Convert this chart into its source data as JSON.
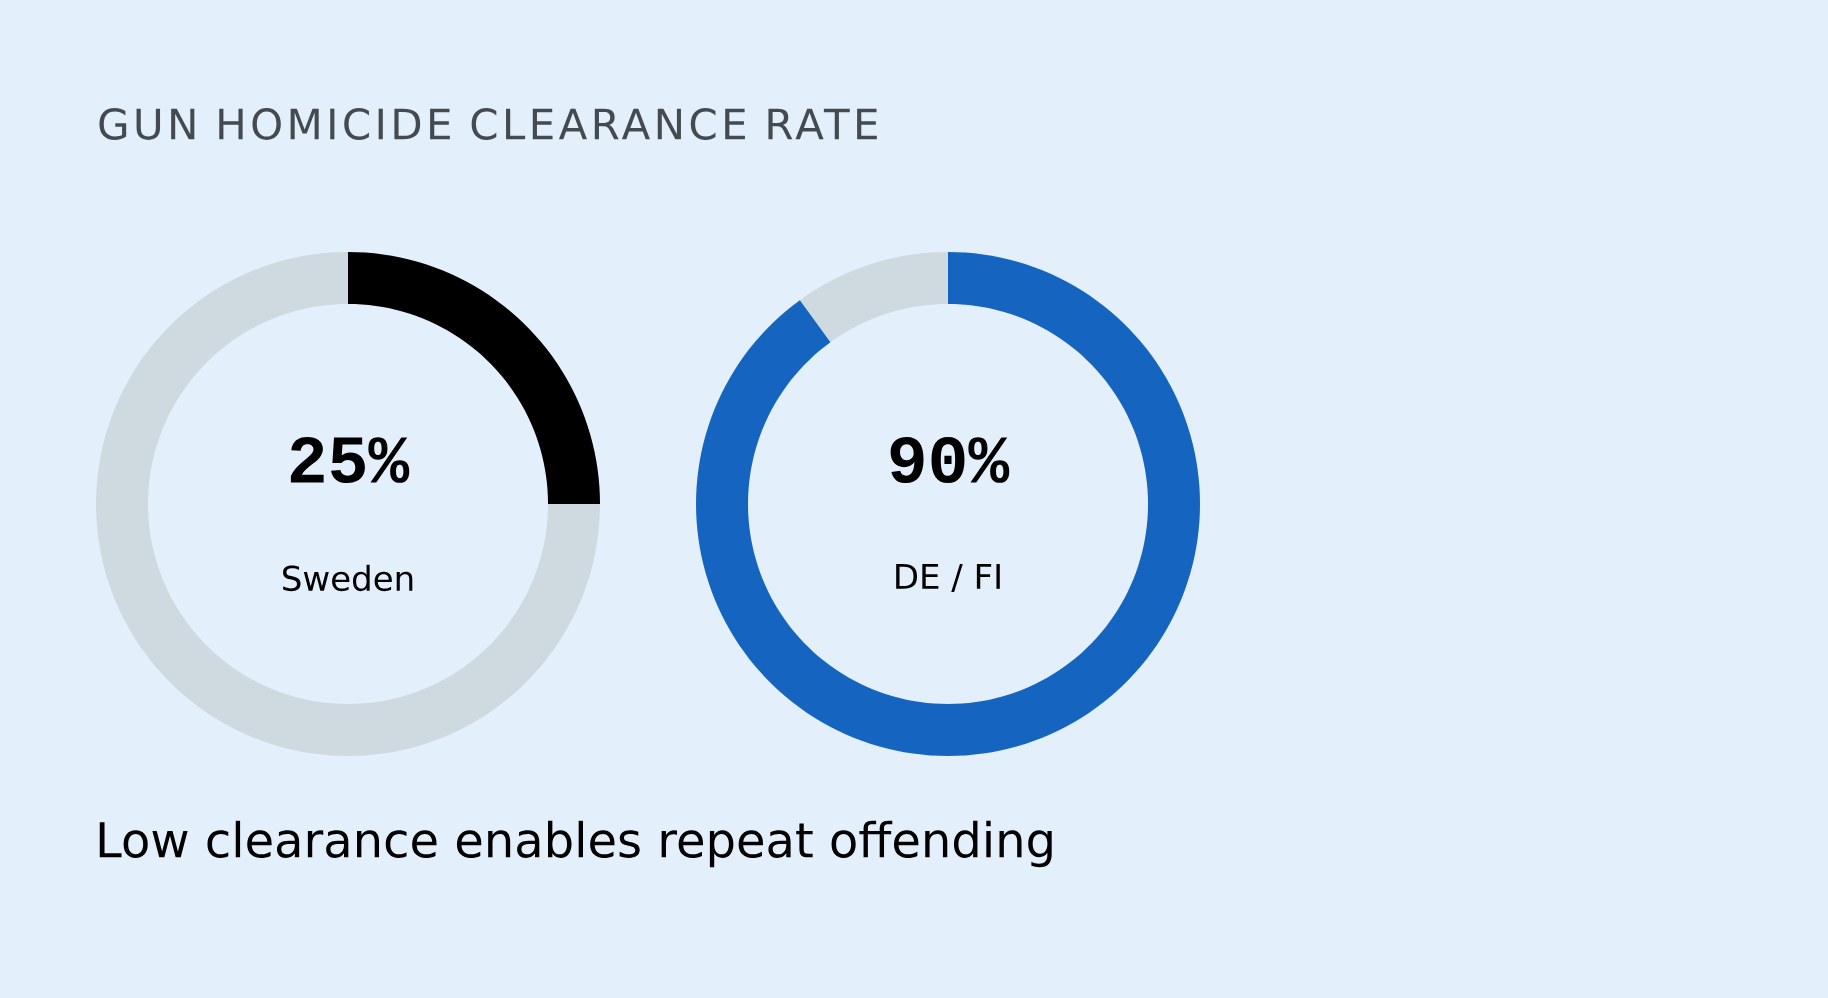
{
  "chart_data": [
    {
      "type": "other",
      "title": "GUN HOMICIDE CLEARANCE RATE",
      "annotations": [
        "Low clearance enables repeat offending"
      ]
    },
    {
      "type": "donut",
      "title": "Sweden",
      "categories": [
        null,
        null
      ],
      "values": [
        25,
        75
      ],
      "colors": [
        "#000000",
        "#cfd9e0"
      ],
      "value_labels": [
        "25%",
        null
      ]
    },
    {
      "type": "donut",
      "title": "DE / FI",
      "categories": [
        null,
        null
      ],
      "values": [
        90,
        10
      ],
      "colors": [
        "#1565c0",
        "#cfd9e0"
      ],
      "value_labels": [
        "90%",
        null
      ]
    }
  ]
}
